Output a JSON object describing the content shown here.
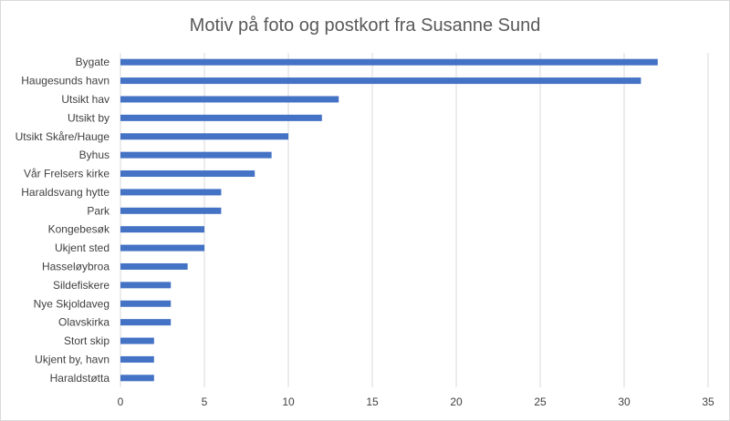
{
  "chart_data": {
    "type": "bar",
    "orientation": "horizontal",
    "title": "Motiv på foto og postkort fra Susanne Sund",
    "categories": [
      "Bygate",
      "Haugesunds havn",
      "Utsikt hav",
      "Utsikt by",
      "Utsikt Skåre/Hauge",
      "Byhus",
      "Vår Frelsers kirke",
      "Haraldsvang hytte",
      "Park",
      "Kongebesøk",
      "Ukjent sted",
      "Hasseløybroa",
      "Sildefiskere",
      "Nye Skjoldaveg",
      "Olavskirka",
      "Stort skip",
      "Ukjent by, havn",
      "Haraldstøtta"
    ],
    "values": [
      32,
      31,
      13,
      12,
      10,
      9,
      8,
      6,
      6,
      5,
      5,
      4,
      3,
      3,
      3,
      2,
      2,
      2
    ],
    "xlim": [
      0,
      35
    ],
    "xticks": [
      "0",
      "5",
      "10",
      "15",
      "20",
      "25",
      "30",
      "35"
    ],
    "grid": "vertical",
    "legend": "none",
    "bar_color": "#4472c4"
  }
}
